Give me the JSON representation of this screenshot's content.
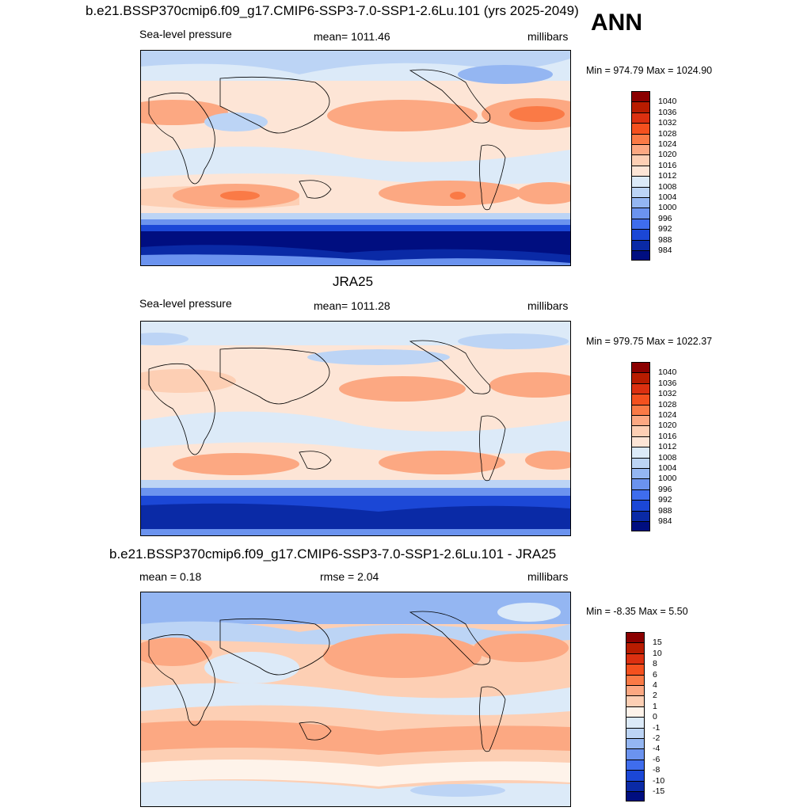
{
  "ann_label": "ANN",
  "panel1": {
    "title": "b.e21.BSSP370cmip6.f09_g17.CMIP6-SSP3-7.0-SSP1-2.6Lu.101 (yrs 2025-2049)",
    "left": "Sea-level pressure",
    "mean": "mean= 1011.46",
    "units": "millibars",
    "minmax": "Min = 974.79 Max = 1024.90"
  },
  "panel2": {
    "title": "JRA25",
    "left": "Sea-level pressure",
    "mean": "mean= 1011.28",
    "units": "millibars",
    "minmax": "Min = 979.75 Max = 1022.37"
  },
  "panel3": {
    "title": "b.e21.BSSP370cmip6.f09_g17.CMIP6-SSP3-7.0-SSP1-2.6Lu.101 - JRA25",
    "mean": "mean =   0.18",
    "rmse": "rmse =   2.04",
    "units": "millibars",
    "minmax": "Min =  -8.35 Max =   5.50"
  },
  "colorbar_abs": {
    "labels": [
      "1040",
      "1036",
      "1032",
      "1028",
      "1024",
      "1020",
      "1016",
      "1012",
      "1008",
      "1004",
      "1000",
      "996",
      "992",
      "988",
      "984"
    ],
    "colors": [
      "#8b0000",
      "#b81c00",
      "#dc3010",
      "#f4501e",
      "#fa7a46",
      "#fca882",
      "#fdcfb4",
      "#fde5d6",
      "#dceaf8",
      "#bcd4f5",
      "#94b6f2",
      "#6b93ef",
      "#3f6ded",
      "#1b47d6",
      "#0a2aa6",
      "#000e80"
    ]
  },
  "colorbar_diff": {
    "labels": [
      "15",
      "10",
      "8",
      "6",
      "4",
      "2",
      "1",
      "0",
      "-1",
      "-2",
      "-4",
      "-6",
      "-8",
      "-10",
      "-15"
    ],
    "colors": [
      "#8b0000",
      "#b81c00",
      "#dc3010",
      "#f4501e",
      "#fa7a46",
      "#fca882",
      "#fdcfb4",
      "#fef3ea",
      "#dceaf8",
      "#bcd4f5",
      "#94b6f2",
      "#6b93ef",
      "#3f6ded",
      "#1b47d6",
      "#0a2aa6",
      "#000e80"
    ]
  }
}
